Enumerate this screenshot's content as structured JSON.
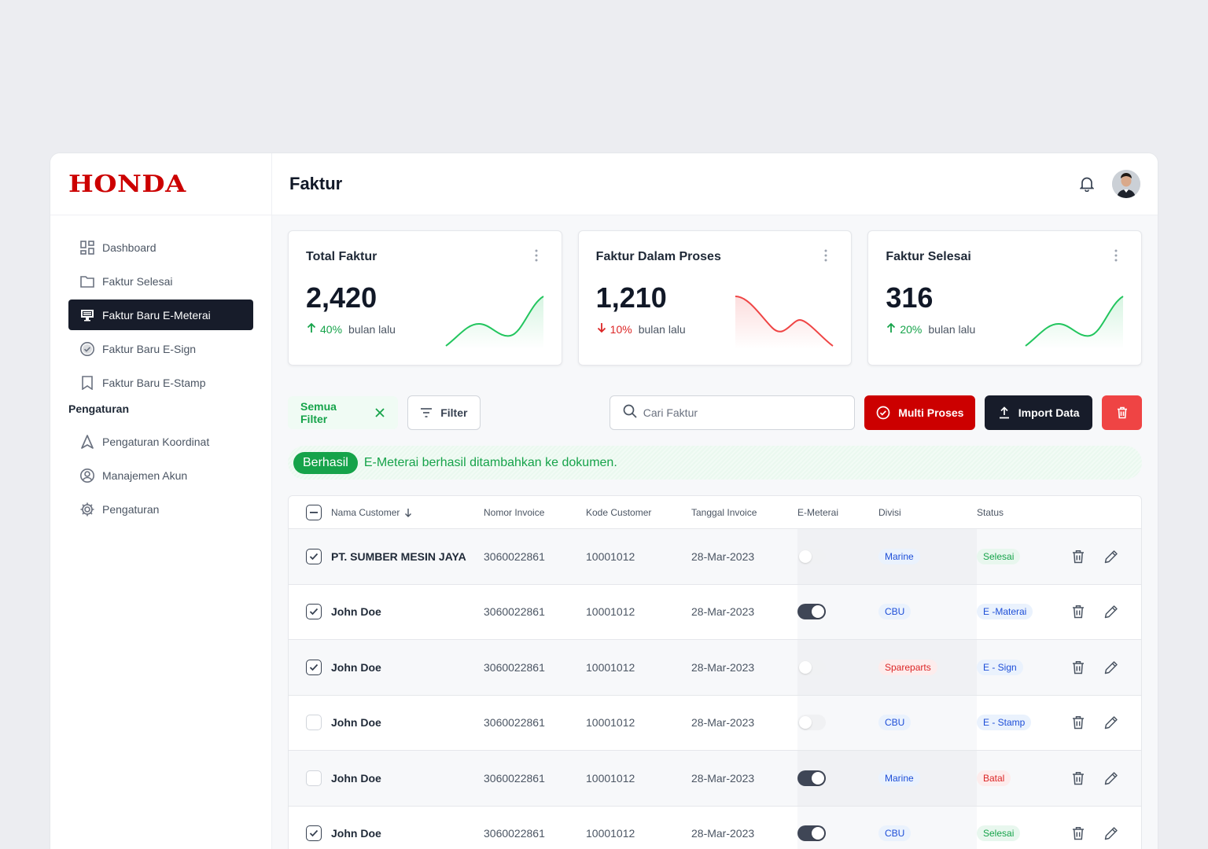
{
  "brand": {
    "logo": "HONDA",
    "color": "#CC0000"
  },
  "header": {
    "title": "Faktur"
  },
  "sidebar": {
    "items": [
      {
        "label": "Dashboard",
        "icon": "dashboard-icon"
      },
      {
        "label": "Faktur Selesai",
        "icon": "folder-icon"
      },
      {
        "label": "Faktur Baru E-Meterai",
        "icon": "monitor-icon",
        "active": true
      },
      {
        "label": "Faktur Baru E-Sign",
        "icon": "check-circle-icon"
      },
      {
        "label": "Faktur Baru E-Stamp",
        "icon": "bookmark-icon"
      }
    ],
    "section_label": "Pengaturan",
    "settings": [
      {
        "label": "Pengaturan Koordinat",
        "icon": "navigation-icon"
      },
      {
        "label": "Manajemen Akun",
        "icon": "user-circle-icon"
      },
      {
        "label": "Pengaturan",
        "icon": "gear-icon"
      }
    ]
  },
  "cards": [
    {
      "title": "Total Faktur",
      "value": "2,420",
      "trend": "up",
      "pct": "40%",
      "suffix": "bulan lalu"
    },
    {
      "title": "Faktur Dalam Proses",
      "value": "1,210",
      "trend": "down",
      "pct": "10%",
      "suffix": "bulan lalu"
    },
    {
      "title": "Faktur Selesai",
      "value": "316",
      "trend": "up",
      "pct": "20%",
      "suffix": "bulan lalu"
    }
  ],
  "toolbar": {
    "chip": "Semua Filter",
    "filter": "Filter",
    "search_placeholder": "Cari Faktur",
    "multi": "Multi Proses",
    "import": "Import Data"
  },
  "alert": {
    "badge": "Berhasil",
    "message": "E-Meterai berhasil ditambahkan ke dokumen."
  },
  "table": {
    "columns": [
      "Nama Customer",
      "Nomor Invoice",
      "Kode Customer",
      "Tanggal Invoice",
      "E-Meterai",
      "Divisi",
      "Status"
    ],
    "rows": [
      {
        "name": "PT. SUMBER MESIN JAYA",
        "invoice": "3060022861",
        "kode": "10001012",
        "tanggal": "28-Mar-2023",
        "checked": true,
        "emeterai": false,
        "divisi": "Marine",
        "divisi_color": "blue",
        "status": "Selesai",
        "status_color": "green"
      },
      {
        "name": "John Doe",
        "invoice": "3060022861",
        "kode": "10001012",
        "tanggal": "28-Mar-2023",
        "checked": true,
        "emeterai": true,
        "divisi": "CBU",
        "divisi_color": "blue",
        "status": "E -Materai",
        "status_color": "blue"
      },
      {
        "name": "John Doe",
        "invoice": "3060022861",
        "kode": "10001012",
        "tanggal": "28-Mar-2023",
        "checked": true,
        "emeterai": false,
        "divisi": "Spareparts",
        "divisi_color": "red",
        "status": "E - Sign",
        "status_color": "blue"
      },
      {
        "name": "John Doe",
        "invoice": "3060022861",
        "kode": "10001012",
        "tanggal": "28-Mar-2023",
        "checked": false,
        "emeterai": false,
        "divisi": "CBU",
        "divisi_color": "blue",
        "status": "E - Stamp",
        "status_color": "blue"
      },
      {
        "name": "John Doe",
        "invoice": "3060022861",
        "kode": "10001012",
        "tanggal": "28-Mar-2023",
        "checked": false,
        "emeterai": true,
        "divisi": "Marine",
        "divisi_color": "blue",
        "status": "Batal",
        "status_color": "red"
      },
      {
        "name": "John Doe",
        "invoice": "3060022861",
        "kode": "10001012",
        "tanggal": "28-Mar-2023",
        "checked": true,
        "emeterai": true,
        "divisi": "CBU",
        "divisi_color": "blue",
        "status": "Selesai",
        "status_color": "green"
      }
    ]
  }
}
